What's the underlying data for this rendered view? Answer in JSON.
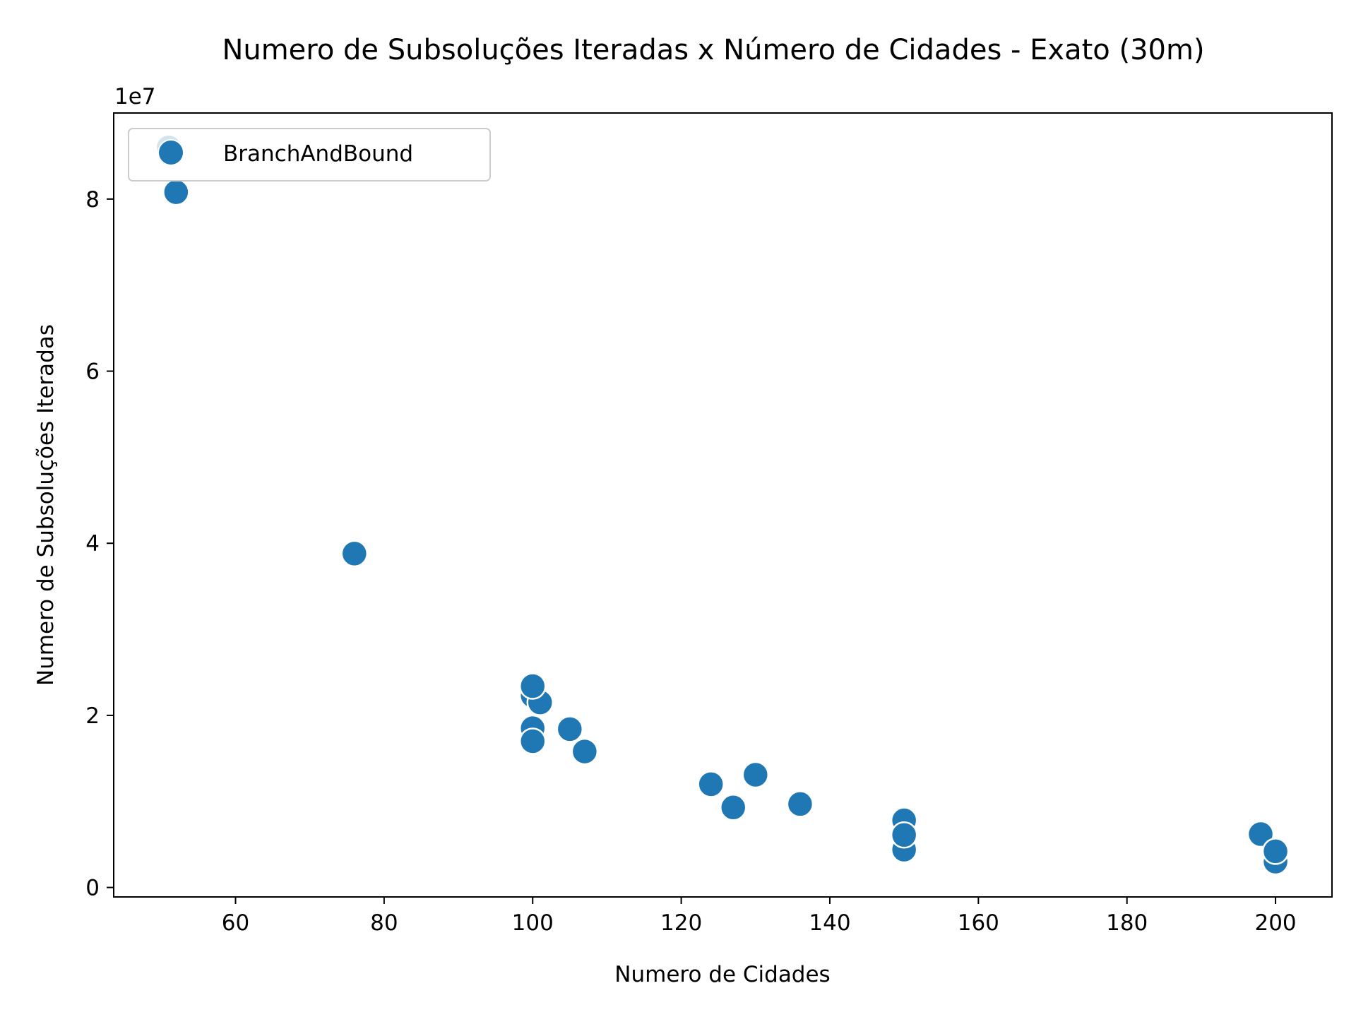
{
  "chart_data": {
    "type": "scatter",
    "title": "Numero de Subsoluções Iteradas x Número de Cidades  - Exato (30m)",
    "xlabel": "Numero de Cidades",
    "ylabel": "Numero de Subsoluções Iteradas",
    "y_offset_label": "1e7",
    "xlim": [
      43.6,
      207.6
    ],
    "ylim": [
      -1100000,
      90000000
    ],
    "x_ticks": [
      60,
      80,
      100,
      120,
      140,
      160,
      180,
      200
    ],
    "y_ticks": [
      0,
      20000000,
      40000000,
      60000000,
      80000000
    ],
    "y_tick_labels": [
      "0",
      "2",
      "4",
      "6",
      "8"
    ],
    "grid": false,
    "legend_position": "top-left",
    "series": [
      {
        "name": "BranchAndBound",
        "color": "#1f77b4",
        "points": [
          {
            "x": 51,
            "y": 86000000
          },
          {
            "x": 52,
            "y": 80800000
          },
          {
            "x": 76,
            "y": 38800000
          },
          {
            "x": 100,
            "y": 22300000
          },
          {
            "x": 101,
            "y": 21500000
          },
          {
            "x": 100,
            "y": 23400000
          },
          {
            "x": 100,
            "y": 18500000
          },
          {
            "x": 100,
            "y": 17000000
          },
          {
            "x": 105,
            "y": 18400000
          },
          {
            "x": 107,
            "y": 15800000
          },
          {
            "x": 124,
            "y": 12000000
          },
          {
            "x": 127,
            "y": 9300000
          },
          {
            "x": 130,
            "y": 13100000
          },
          {
            "x": 136,
            "y": 9700000
          },
          {
            "x": 150,
            "y": 7800000
          },
          {
            "x": 150,
            "y": 4400000
          },
          {
            "x": 150,
            "y": 6100000
          },
          {
            "x": 198,
            "y": 6200000
          },
          {
            "x": 200,
            "y": 3000000
          },
          {
            "x": 200,
            "y": 4200000
          }
        ]
      }
    ]
  }
}
